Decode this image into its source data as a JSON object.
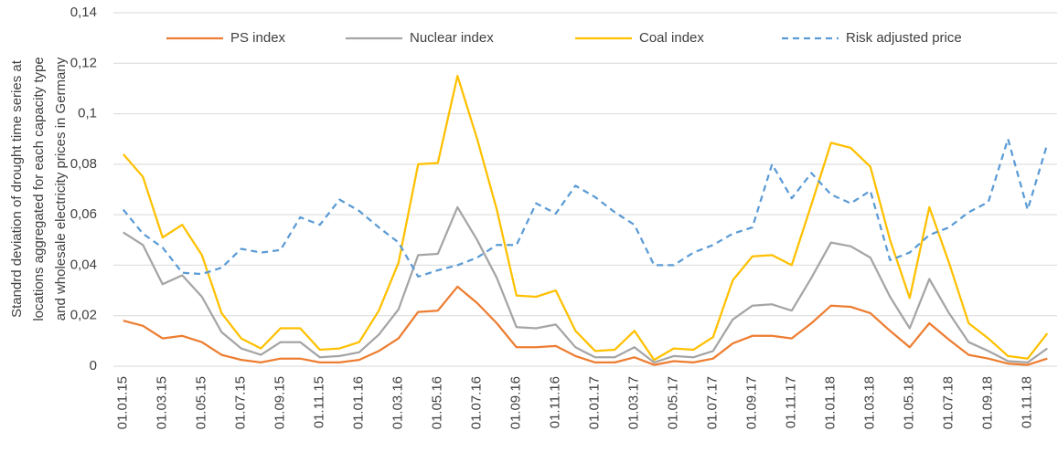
{
  "chart_data": {
    "type": "line",
    "ylabel": [
      "Standrd deviation of drought time series at",
      "locations aggregated for each capacity type",
      "and wholesale electricity prices in Germany"
    ],
    "categories": [
      "01.01.15",
      null,
      "01.03.15",
      null,
      "01.05.15",
      null,
      "01.07.15",
      null,
      "01.09.15",
      null,
      "01.11.15",
      null,
      "01.01.16",
      null,
      "01.03.16",
      null,
      "01.05.16",
      null,
      "01.07.16",
      null,
      "01.09.16",
      null,
      "01.11.16",
      null,
      "01.01.17",
      null,
      "01.03.17",
      null,
      "01.05.17",
      null,
      "01.07.17",
      null,
      "01.09.17",
      null,
      "01.11.17",
      null,
      "01.01.18",
      null,
      "01.03.18",
      null,
      "01.05.18",
      null,
      "01.07.18",
      null,
      "01.09.18",
      null,
      "01.11.18",
      null
    ],
    "series": [
      {
        "name": "PS index",
        "color": "#ed7d31",
        "style": "solid",
        "values": [
          0.018,
          0.016,
          0.011,
          0.012,
          0.0095,
          0.0045,
          0.0025,
          0.0015,
          0.003,
          0.003,
          0.0015,
          0.0015,
          0.0025,
          0.006,
          0.011,
          0.0215,
          0.022,
          0.0315,
          0.025,
          0.017,
          0.0075,
          0.0075,
          0.008,
          0.004,
          0.0015,
          0.0015,
          0.0035,
          0.0005,
          0.002,
          0.0015,
          0.003,
          0.009,
          0.012,
          0.012,
          0.011,
          0.017,
          0.024,
          0.0235,
          0.021,
          0.014,
          0.0075,
          0.017,
          0.0105,
          0.0045,
          0.003,
          0.001,
          0.0005,
          0.003
        ]
      },
      {
        "name": "Nuclear index",
        "color": "#a5a5a5",
        "style": "solid",
        "values": [
          0.053,
          0.048,
          0.0325,
          0.036,
          0.0275,
          0.0135,
          0.007,
          0.0045,
          0.0095,
          0.0095,
          0.0035,
          0.004,
          0.0055,
          0.0125,
          0.0225,
          0.044,
          0.0445,
          0.063,
          0.05,
          0.035,
          0.0155,
          0.015,
          0.0165,
          0.0075,
          0.0035,
          0.0035,
          0.0075,
          0.0015,
          0.004,
          0.0035,
          0.006,
          0.0185,
          0.024,
          0.0245,
          0.022,
          0.035,
          0.049,
          0.0475,
          0.043,
          0.0275,
          0.015,
          0.0345,
          0.021,
          0.0095,
          0.006,
          0.002,
          0.0015,
          0.007
        ]
      },
      {
        "name": "Coal index",
        "color": "#ffc000",
        "style": "solid",
        "values": [
          0.084,
          0.075,
          0.051,
          0.056,
          0.044,
          0.021,
          0.011,
          0.007,
          0.015,
          0.015,
          0.0065,
          0.007,
          0.0095,
          0.022,
          0.041,
          0.08,
          0.0805,
          0.115,
          0.09,
          0.062,
          0.028,
          0.0275,
          0.03,
          0.014,
          0.006,
          0.0065,
          0.014,
          0.0025,
          0.007,
          0.0065,
          0.0115,
          0.034,
          0.0435,
          0.044,
          0.04,
          0.064,
          0.0885,
          0.0865,
          0.079,
          0.05,
          0.027,
          0.063,
          0.041,
          0.017,
          0.011,
          0.004,
          0.003,
          0.013
        ]
      },
      {
        "name": "Risk adjusted price",
        "color": "#5b9bd5",
        "style": "dashed",
        "values": [
          0.062,
          0.0525,
          0.047,
          0.037,
          0.0365,
          0.039,
          0.0465,
          0.045,
          0.046,
          0.059,
          0.056,
          0.066,
          0.0615,
          0.055,
          0.049,
          0.0355,
          0.038,
          0.04,
          0.043,
          0.048,
          0.048,
          0.0645,
          0.0605,
          0.0715,
          0.067,
          0.061,
          0.056,
          0.04,
          0.04,
          0.045,
          0.048,
          0.0525,
          0.055,
          0.08,
          0.0665,
          0.0765,
          0.068,
          0.0645,
          0.0695,
          0.042,
          0.045,
          0.052,
          0.055,
          0.061,
          0.065,
          0.09,
          0.062,
          0.088
        ]
      }
    ],
    "ylim": [
      0,
      0.14
    ],
    "yticks": [
      0,
      {
        "value": 0.02,
        "label": "0,02"
      },
      {
        "value": 0.04,
        "label": "0,04"
      },
      {
        "value": 0.06,
        "label": "0,06"
      },
      {
        "value": 0.08,
        "label": "0,08"
      },
      {
        "value": 0.1,
        "label": "0,1"
      },
      {
        "value": 0.12,
        "label": "0,12"
      },
      {
        "value": 0.14,
        "label": "0,14"
      }
    ],
    "grid": true,
    "legend": "top"
  }
}
